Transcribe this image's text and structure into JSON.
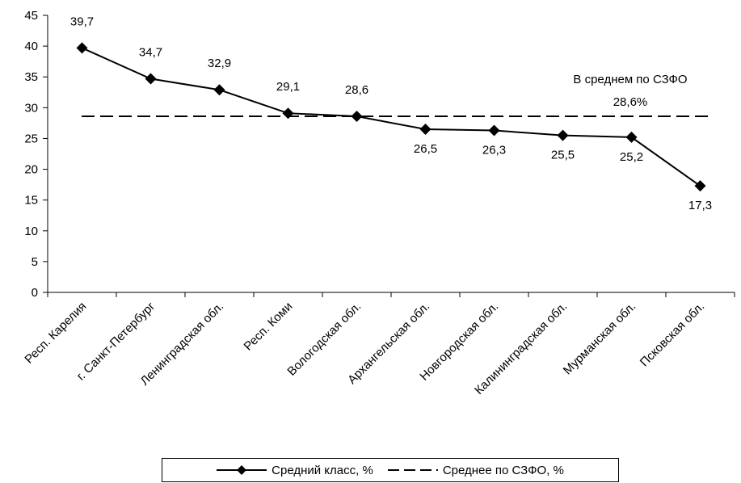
{
  "chart_data": {
    "type": "line",
    "title": "",
    "xlabel": "",
    "ylabel": "",
    "ylim": [
      0,
      45
    ],
    "yticks": [
      0,
      5,
      10,
      15,
      20,
      25,
      30,
      35,
      40,
      45
    ],
    "grid": false,
    "legend_position": "bottom",
    "categories": [
      "Респ. Карелия",
      "г. Санкт-Петербург",
      "Ленинградская обл.",
      "Респ. Коми",
      "Вологодская обл.",
      "Архангельская обл.",
      "Новгородская обл.",
      "Калининградская обл.",
      "Мурманская обл.",
      "Псковская обл."
    ],
    "series": [
      {
        "name": "Средний класс, %",
        "style": "solid",
        "marker": "diamond",
        "color": "#000000",
        "values": [
          39.7,
          34.7,
          32.9,
          29.1,
          28.6,
          26.5,
          26.3,
          25.5,
          25.2,
          17.3
        ],
        "labels": [
          "39,7",
          "34,7",
          "32,9",
          "29,1",
          "28,6",
          "26,5",
          "26,3",
          "25,5",
          "25,2",
          "17,3"
        ]
      },
      {
        "name": "Среднее по СЗФО, %",
        "style": "dashed",
        "color": "#000000",
        "values": [
          28.6,
          28.6,
          28.6,
          28.6,
          28.6,
          28.6,
          28.6,
          28.6,
          28.6,
          28.6
        ]
      }
    ],
    "annotation": {
      "line1": "В среднем по СЗФО",
      "line2": "28,6%"
    }
  }
}
